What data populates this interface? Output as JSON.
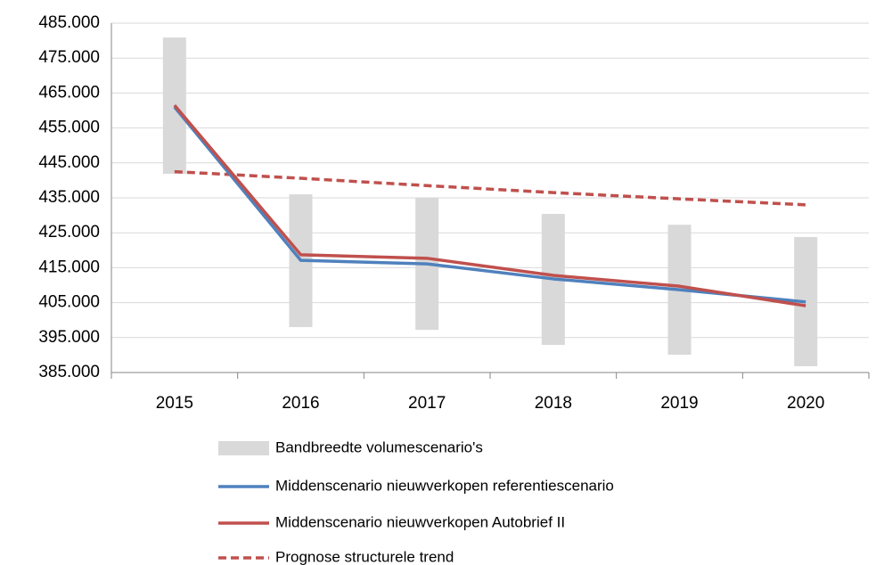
{
  "chart_data": {
    "type": "line",
    "categories": [
      "2015",
      "2016",
      "2017",
      "2018",
      "2019",
      "2020"
    ],
    "band": {
      "name": "Bandbreedte volumescenario's",
      "color": "#d9d9d9",
      "low": [
        441900,
        398000,
        397200,
        392900,
        390100,
        386800
      ],
      "high": [
        480900,
        436000,
        435000,
        430400,
        427300,
        423800
      ]
    },
    "series": [
      {
        "name": "Middenscenario nieuwverkopen referentiescenario",
        "color": "#4f81bd",
        "dash": false,
        "values": [
          461000,
          417100,
          416100,
          411800,
          408700,
          405200
        ]
      },
      {
        "name": "Middenscenario nieuwverkopen Autobrief II",
        "color": "#c0504d",
        "dash": false,
        "values": [
          461500,
          418700,
          417700,
          412800,
          409700,
          404100
        ]
      },
      {
        "name": "Prognose structurele trend",
        "color": "#c0504d",
        "dash": true,
        "values": [
          442500,
          440600,
          438500,
          436500,
          434700,
          433000
        ]
      }
    ],
    "ylim": [
      385000,
      485000
    ],
    "yticks": [
      {
        "value": 385000,
        "label": "385.000"
      },
      {
        "value": 395000,
        "label": "395.000"
      },
      {
        "value": 405000,
        "label": "405.000"
      },
      {
        "value": 415000,
        "label": "415.000"
      },
      {
        "value": 425000,
        "label": "425.000"
      },
      {
        "value": 435000,
        "label": "435.000"
      },
      {
        "value": 445000,
        "label": "445.000"
      },
      {
        "value": 455000,
        "label": "455.000"
      },
      {
        "value": 465000,
        "label": "465.000"
      },
      {
        "value": 475000,
        "label": "475.000"
      },
      {
        "value": 485000,
        "label": "485.000"
      }
    ],
    "grid": true
  }
}
